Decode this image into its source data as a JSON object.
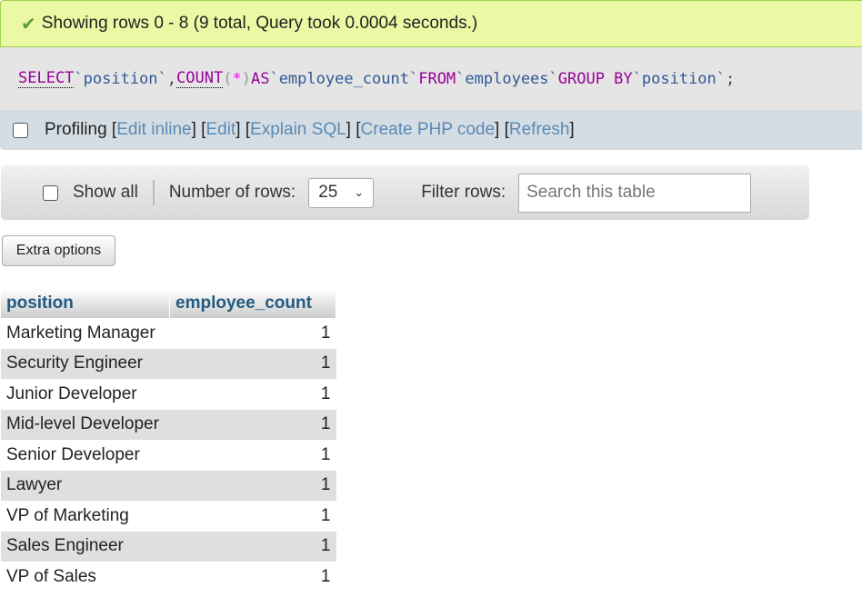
{
  "status": {
    "message": "Showing rows 0 - 8 (9 total, Query took 0.0004 seconds.)",
    "icon": "check-icon"
  },
  "sql": {
    "select": "SELECT",
    "col1": "`position`",
    "comma": ",",
    "count": "COUNT",
    "lp": "(",
    "star": "*",
    "rp": ")",
    "as": "AS",
    "alias": "`employee_count`",
    "from": "FROM",
    "table": "`employees`",
    "group": "GROUP BY",
    "col2": "`position`",
    "semi": ";"
  },
  "profiling": {
    "label": "Profiling",
    "links": [
      "Edit inline",
      "Edit",
      "Explain SQL",
      "Create PHP code",
      "Refresh"
    ]
  },
  "nav": {
    "show_all": "Show all",
    "num_rows_label": "Number of rows:",
    "num_rows_value": "25",
    "filter_label": "Filter rows:",
    "search_placeholder": "Search this table"
  },
  "extra_options": "Extra options",
  "table": {
    "headers": [
      "position",
      "employee_count"
    ],
    "rows": [
      [
        "Marketing Manager",
        "1"
      ],
      [
        "Security Engineer",
        "1"
      ],
      [
        "Junior Developer",
        "1"
      ],
      [
        "Mid-level Developer",
        "1"
      ],
      [
        "Senior Developer",
        "1"
      ],
      [
        "Lawyer",
        "1"
      ],
      [
        "VP of Marketing",
        "1"
      ],
      [
        "Sales Engineer",
        "1"
      ],
      [
        "VP of Sales",
        "1"
      ]
    ]
  }
}
